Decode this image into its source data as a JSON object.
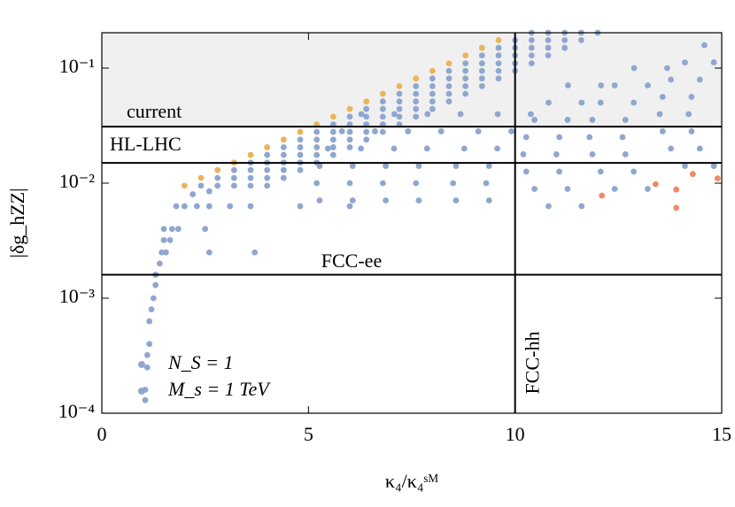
{
  "chart_data": {
    "type": "scatter",
    "xlabel": "κ₄/κ₄ˢᴹ",
    "ylabel": "|δg_hZZ|",
    "xlim": [
      0,
      15
    ],
    "ylim": [
      0.0001,
      0.203
    ],
    "ylog": true,
    "xticks": [
      0,
      5,
      10,
      15
    ],
    "yticks": [
      {
        "value": 0.1,
        "label": "10⁻¹"
      },
      {
        "value": 0.01,
        "label": "10⁻²"
      },
      {
        "value": 0.001,
        "label": "10⁻³"
      },
      {
        "value": 0.0001,
        "label": "10⁻⁴"
      }
    ],
    "hlines": [
      {
        "value": 0.031,
        "label": "current"
      },
      {
        "value": 0.015,
        "label": "HL-LHC"
      },
      {
        "value": 0.0016,
        "label": "FCC-ee"
      }
    ],
    "vlines": [
      {
        "value": 10,
        "label": "FCC-hh"
      }
    ],
    "shade_above_hline": 0,
    "shade_color": "#f0f0f0",
    "legend": [
      {
        "label": "N_S = 1",
        "color": "#8fa7cf"
      },
      {
        "label": "M_s = 1 TeV",
        "color": "#8fa7cf"
      }
    ],
    "legend_position": "lower left",
    "series": [
      {
        "color": "#8fa7cf",
        "x": [
          1.05,
          1.05,
          1.1,
          1.1,
          1.15,
          1.15,
          1.2,
          1.25,
          1.3,
          1.3,
          1.4,
          1.45,
          1.55,
          1.5,
          1.65,
          1.5,
          1.7,
          1.85,
          2.5,
          2.6,
          3.7,
          1.8,
          2.0,
          2.3,
          2.6,
          3.1,
          3.6,
          4.8,
          6.0,
          2.2,
          2.6,
          2.4,
          2.8,
          3.2,
          3.6,
          4.0,
          4.4,
          4.8,
          5.2,
          5.6,
          6.0,
          6.4,
          6.8,
          7.2,
          7.6,
          8.0,
          8.4,
          8.8,
          9.2,
          9.6,
          10.0,
          10.4,
          2.8,
          3.2,
          3.6,
          4.0,
          4.4,
          4.8,
          5.2,
          5.6,
          6.0,
          6.4,
          6.8,
          7.2,
          7.6,
          8.0,
          8.4,
          8.8,
          9.2,
          9.6,
          10.0,
          10.4,
          10.8,
          3.2,
          3.6,
          4.0,
          4.4,
          4.8,
          5.2,
          5.6,
          6.0,
          6.4,
          6.8,
          7.2,
          7.6,
          8.0,
          8.4,
          8.8,
          9.2,
          9.6,
          10.0,
          10.4,
          10.8,
          11.2,
          3.6,
          4.0,
          4.4,
          4.8,
          5.2,
          5.6,
          6.0,
          6.4,
          6.8,
          7.2,
          7.6,
          8.0,
          8.4,
          8.8,
          9.2,
          9.6,
          10.0,
          10.4,
          10.8,
          11.2,
          11.6,
          4.0,
          4.4,
          4.8,
          5.2,
          5.6,
          6.0,
          6.4,
          6.8,
          7.2,
          7.6,
          8.0,
          8.4,
          8.8,
          9.2,
          9.6,
          10.0,
          10.4,
          10.8,
          11.2,
          11.6,
          12.0,
          5.27,
          5.2,
          5.27,
          5.47,
          5.81,
          6.28,
          6.07,
          6.0,
          6.07,
          6.27,
          6.61,
          7.08,
          6.87,
          6.8,
          6.87,
          7.07,
          7.41,
          7.88,
          7.67,
          7.6,
          7.67,
          7.87,
          8.21,
          8.68,
          8.57,
          8.5,
          8.57,
          8.77,
          9.11,
          9.58,
          9.37,
          9.3,
          9.37,
          9.57,
          9.91,
          10.38,
          10.81,
          10.47,
          10.27,
          10.2,
          10.27,
          10.47,
          10.81,
          11.28,
          11.61,
          11.27,
          11.07,
          11.0,
          11.07,
          11.27,
          11.61,
          12.08,
          12.41,
          12.07,
          11.87,
          11.8,
          11.87,
          12.07,
          12.41,
          12.88,
          13.21,
          12.87,
          12.67,
          12.6,
          12.67,
          12.87,
          13.21,
          13.68,
          14.11,
          13.77,
          13.57,
          13.5,
          13.57,
          13.77,
          14.11,
          14.58,
          14.81,
          14.47,
          14.27,
          14.2,
          14.27,
          14.47,
          14.81
        ],
        "values": [
          0.00013,
          0.00016,
          0.00025,
          0.00032,
          0.0004,
          0.00063,
          0.0008,
          0.001,
          0.0013,
          0.0016,
          0.002,
          0.0025,
          0.0025,
          0.0032,
          0.0032,
          0.004,
          0.004,
          0.004,
          0.004,
          0.0025,
          0.0025,
          0.0063,
          0.0063,
          0.0063,
          0.0063,
          0.0063,
          0.0063,
          0.0063,
          0.0063,
          0.008,
          0.0085,
          0.0095,
          0.0111,
          0.013,
          0.0151,
          0.0176,
          0.0205,
          0.0239,
          0.0279,
          0.0324,
          0.0378,
          0.0441,
          0.0513,
          0.0598,
          0.0697,
          0.0813,
          0.0946,
          0.11,
          0.129,
          0.15,
          0.175,
          0.203,
          0.0095,
          0.0111,
          0.013,
          0.0151,
          0.0176,
          0.0205,
          0.0239,
          0.0279,
          0.0324,
          0.0378,
          0.0441,
          0.0513,
          0.0598,
          0.0697,
          0.0813,
          0.0946,
          0.11,
          0.129,
          0.15,
          0.175,
          0.203,
          0.0095,
          0.0111,
          0.013,
          0.0151,
          0.0176,
          0.0205,
          0.0239,
          0.0279,
          0.0324,
          0.0378,
          0.0441,
          0.0513,
          0.0598,
          0.0697,
          0.0813,
          0.0946,
          0.11,
          0.129,
          0.15,
          0.175,
          0.203,
          0.0095,
          0.0111,
          0.013,
          0.0151,
          0.0176,
          0.0205,
          0.0239,
          0.0279,
          0.0324,
          0.0378,
          0.0441,
          0.0513,
          0.0598,
          0.0697,
          0.0813,
          0.0946,
          0.11,
          0.129,
          0.15,
          0.175,
          0.203,
          0.0095,
          0.0111,
          0.013,
          0.0151,
          0.0176,
          0.0205,
          0.0239,
          0.0279,
          0.0324,
          0.0378,
          0.0441,
          0.0513,
          0.0598,
          0.0697,
          0.0813,
          0.0946,
          0.11,
          0.129,
          0.15,
          0.175,
          0.203,
          0.00708,
          0.01,
          0.0141,
          0.02,
          0.0282,
          0.0398,
          0.00708,
          0.01,
          0.0141,
          0.02,
          0.0282,
          0.0398,
          0.00708,
          0.01,
          0.0141,
          0.02,
          0.0282,
          0.0398,
          0.00708,
          0.01,
          0.0141,
          0.02,
          0.0282,
          0.0398,
          0.00708,
          0.01,
          0.0141,
          0.02,
          0.0282,
          0.0398,
          0.00708,
          0.01,
          0.0141,
          0.02,
          0.0282,
          0.0398,
          0.00631,
          0.00891,
          0.0126,
          0.0178,
          0.0251,
          0.0355,
          0.0501,
          0.0708,
          0.00631,
          0.00891,
          0.0126,
          0.0178,
          0.0251,
          0.0355,
          0.0501,
          0.0708,
          0.00891,
          0.0126,
          0.0178,
          0.0251,
          0.0355,
          0.0501,
          0.0708,
          0.1,
          0.00891,
          0.0126,
          0.0178,
          0.0251,
          0.0355,
          0.0501,
          0.0708,
          0.1,
          0.0141,
          0.02,
          0.0282,
          0.0398,
          0.0562,
          0.0794,
          0.112,
          0.158,
          0.0141,
          0.02,
          0.0282,
          0.0398,
          0.0562,
          0.0794,
          0.112
        ]
      },
      {
        "color": "#e8b55b",
        "x": [
          2.0,
          2.4,
          2.8,
          3.2,
          3.6,
          4.0,
          4.4,
          4.8,
          5.2,
          5.6,
          6.0,
          6.4,
          6.8,
          7.2,
          7.6,
          8.0,
          8.4,
          8.8,
          9.2,
          9.6
        ],
        "values": [
          0.0095,
          0.0111,
          0.013,
          0.0151,
          0.0176,
          0.0205,
          0.0239,
          0.0279,
          0.0324,
          0.0378,
          0.0441,
          0.0513,
          0.0598,
          0.0697,
          0.0813,
          0.0946,
          0.11,
          0.129,
          0.15,
          0.175
        ]
      },
      {
        "color": "#ee8a6a",
        "x": [
          12.1,
          13.4,
          13.9,
          13.9,
          14.3,
          14.9
        ],
        "values": [
          0.0078,
          0.0098,
          0.0088,
          0.0061,
          0.012,
          0.011
        ]
      }
    ]
  }
}
